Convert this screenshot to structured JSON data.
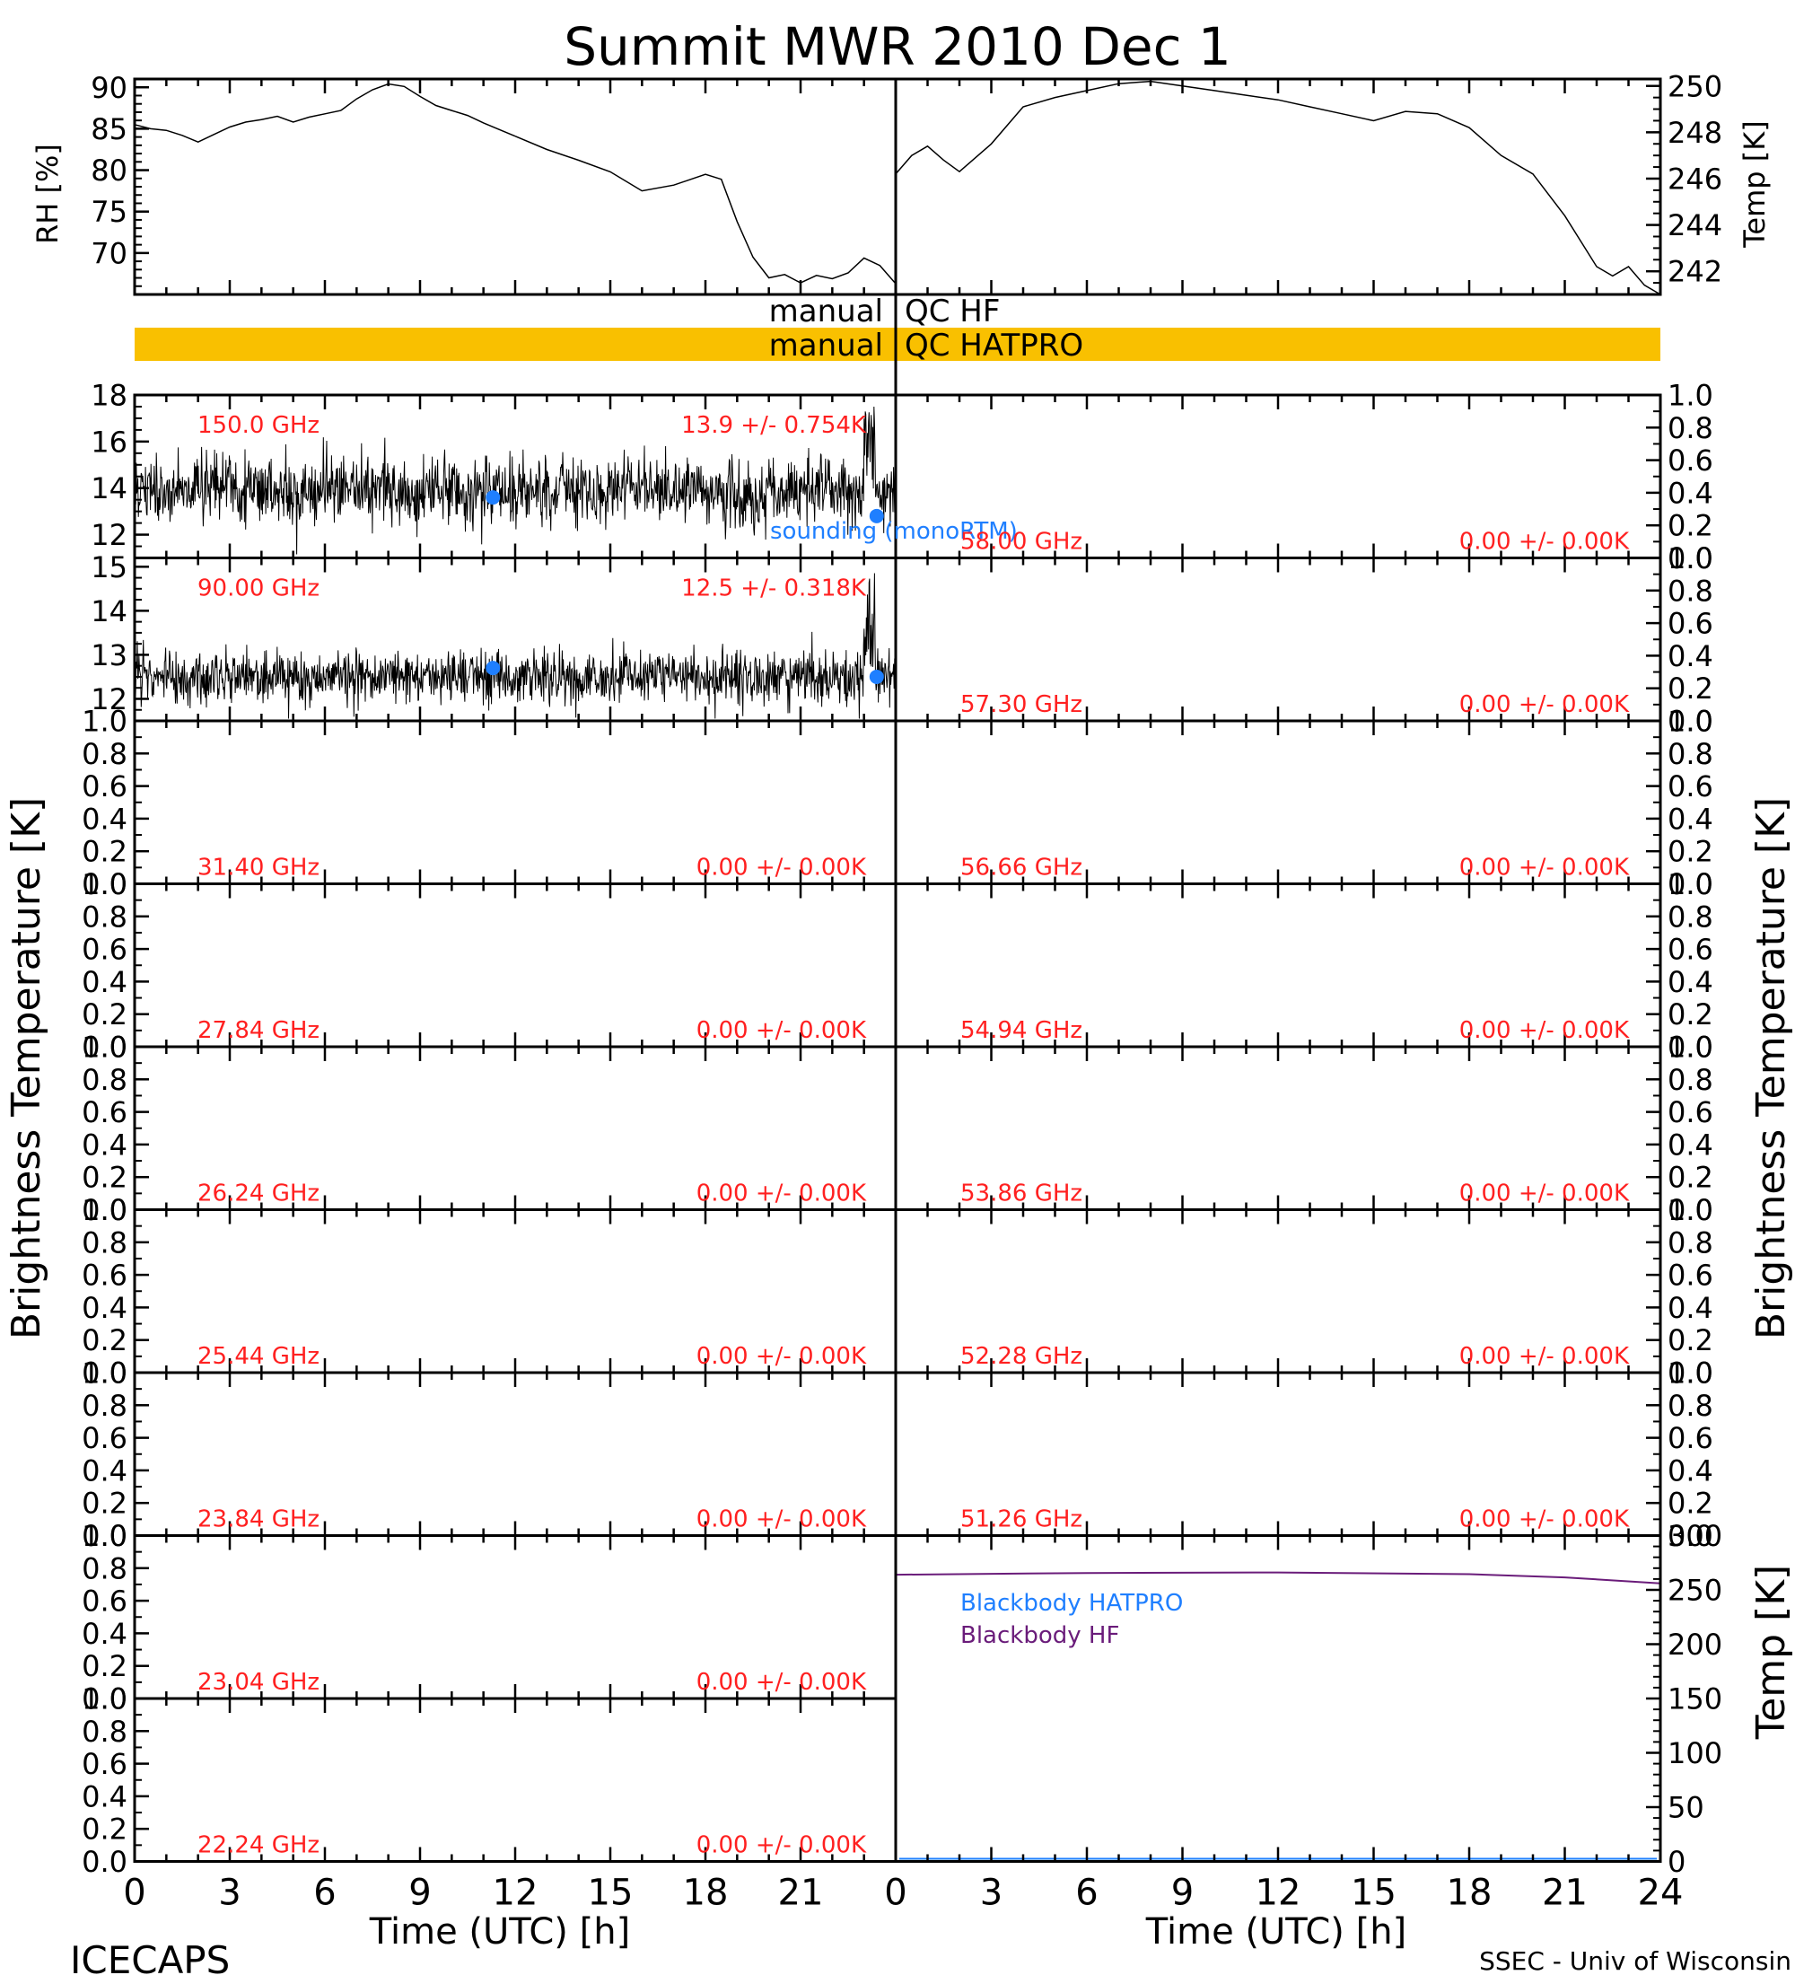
{
  "title": "Summit MWR 2010 Dec  1",
  "footer": {
    "left": "ICECAPS",
    "right": "SSEC - Univ of Wisconsin"
  },
  "ylabels": {
    "left": "Brightness Temperature [K]",
    "right": "Brightness Temperature [K]"
  },
  "qc": {
    "hf_label_left": "manual",
    "hf_label_right": "QC HF",
    "hatpro_label_left": "manual",
    "hatpro_label_right": "QC HATPRO",
    "hatpro_color": "#f9c000"
  },
  "colors": {
    "trace": "#000000",
    "annot": "#ff2020",
    "sounding": "#1f7fff",
    "bb_hatpro": "#1f7fff",
    "bb_hf": "#6a1c7a",
    "qc_bar": "#f9c000"
  },
  "chart_data": [
    {
      "id": "rh",
      "type": "line",
      "ylabel": "RH [%]",
      "xlim": [
        0,
        12
      ],
      "ylim": [
        65,
        91
      ],
      "yticks": [
        70,
        75,
        80,
        85,
        90
      ],
      "x": [
        0,
        0.5,
        1,
        1.5,
        2,
        2.5,
        3,
        3.5,
        4,
        4.5,
        5,
        5.5,
        6,
        6.5,
        7,
        7.5,
        8,
        8.5,
        9,
        9.5,
        10,
        10.5,
        11,
        11.5,
        12
      ],
      "values": [
        85.5,
        85,
        84.8,
        84.2,
        83.4,
        84.3,
        85.2,
        85.8,
        86.1,
        86.5,
        85.8,
        86.4,
        86.8,
        87.2,
        88.6,
        89.7,
        90.4,
        90.1,
        88.9,
        87.8,
        87.2,
        86.6,
        85.7,
        84.9,
        84.1
      ]
    },
    {
      "id": "rh_cont",
      "type": "line",
      "xlim": [
        12,
        24
      ],
      "ylim": [
        65,
        91
      ],
      "x": [
        12,
        13,
        14,
        15,
        16,
        17,
        18,
        18.5,
        19,
        19.5,
        20,
        20.5,
        21,
        21.5,
        22,
        22.5,
        23,
        23.5,
        24
      ],
      "values": [
        84.1,
        82.5,
        81.2,
        79.8,
        77.5,
        78.2,
        79.5,
        78.9,
        73.8,
        69.5,
        67.0,
        67.4,
        66.4,
        67.3,
        66.9,
        67.6,
        69.4,
        68.5,
        66.3
      ]
    },
    {
      "id": "temp",
      "type": "line",
      "ylabel": "Temp [K]",
      "xlim": [
        0,
        24
      ],
      "ylim": [
        241,
        250.3
      ],
      "yticks": [
        242,
        244,
        246,
        248,
        250
      ],
      "x": [
        0,
        0.5,
        1,
        1.5,
        2,
        3,
        4,
        5,
        6,
        7,
        8,
        9,
        10,
        11,
        12,
        13,
        14,
        15,
        16,
        17,
        18,
        19,
        20,
        21,
        22,
        22.5,
        23,
        23.5,
        24
      ],
      "values": [
        246.2,
        247.0,
        247.4,
        246.8,
        246.3,
        247.5,
        249.1,
        249.5,
        249.8,
        250.1,
        250.2,
        250.0,
        249.8,
        249.6,
        249.4,
        249.1,
        248.8,
        248.5,
        248.9,
        248.8,
        248.2,
        247.0,
        246.2,
        244.4,
        242.2,
        241.8,
        242.2,
        241.4,
        241.0
      ]
    },
    {
      "id": "ch150",
      "type": "scatter",
      "freq": "150.0 GHz",
      "stat": "13.9 +/- 0.754K",
      "ylim": [
        11,
        18
      ],
      "yticks": [
        12,
        14,
        16,
        18
      ],
      "mean": 13.9,
      "sd": 0.754,
      "sounding": {
        "x": [
          11.3,
          23.4
        ],
        "values": [
          13.6,
          12.8
        ]
      },
      "sounding_label": "sounding (monoRTM)"
    },
    {
      "id": "ch90",
      "type": "scatter",
      "freq": "90.00 GHz",
      "stat": "12.5 +/- 0.318K",
      "ylim": [
        11.5,
        15.2
      ],
      "yticks": [
        12,
        13,
        14,
        15
      ],
      "mean": 12.5,
      "sd": 0.318,
      "sounding": {
        "x": [
          11.3,
          23.4
        ],
        "values": [
          12.7,
          12.5
        ]
      }
    },
    {
      "id": "left3",
      "freq": "31.40 GHz",
      "stat": "0.00 +/- 0.00K",
      "ylim": [
        0,
        1
      ]
    },
    {
      "id": "left4",
      "freq": "27.84 GHz",
      "stat": "0.00 +/- 0.00K",
      "ylim": [
        0,
        1
      ]
    },
    {
      "id": "left5",
      "freq": "26.24 GHz",
      "stat": "0.00 +/- 0.00K",
      "ylim": [
        0,
        1
      ]
    },
    {
      "id": "left6",
      "freq": "25.44 GHz",
      "stat": "0.00 +/- 0.00K",
      "ylim": [
        0,
        1
      ]
    },
    {
      "id": "left7",
      "freq": "23.84 GHz",
      "stat": "0.00 +/- 0.00K",
      "ylim": [
        0,
        1
      ]
    },
    {
      "id": "left8",
      "freq": "23.04 GHz",
      "stat": "0.00 +/- 0.00K",
      "ylim": [
        0,
        1
      ]
    },
    {
      "id": "left9",
      "freq": "22.24 GHz",
      "stat": "0.00 +/- 0.00K",
      "ylim": [
        0,
        1
      ]
    },
    {
      "id": "right1",
      "freq": "58.00 GHz",
      "stat": "0.00 +/- 0.00K",
      "ylim": [
        0,
        1
      ]
    },
    {
      "id": "right2",
      "freq": "57.30 GHz",
      "stat": "0.00 +/- 0.00K",
      "ylim": [
        0,
        1
      ]
    },
    {
      "id": "right3",
      "freq": "56.66 GHz",
      "stat": "0.00 +/- 0.00K",
      "ylim": [
        0,
        1
      ]
    },
    {
      "id": "right4",
      "freq": "54.94 GHz",
      "stat": "0.00 +/- 0.00K",
      "ylim": [
        0,
        1
      ]
    },
    {
      "id": "right5",
      "freq": "53.86 GHz",
      "stat": "0.00 +/- 0.00K",
      "ylim": [
        0,
        1
      ]
    },
    {
      "id": "right6",
      "freq": "52.28 GHz",
      "stat": "0.00 +/- 0.00K",
      "ylim": [
        0,
        1
      ]
    },
    {
      "id": "right7",
      "freq": "51.26 GHz",
      "stat": "0.00 +/- 0.00K",
      "ylim": [
        0,
        1
      ]
    },
    {
      "id": "blackbody",
      "type": "line",
      "ylabel": "Temp [K]",
      "ylim": [
        0,
        300
      ],
      "yticks": [
        0,
        50,
        100,
        150,
        200,
        250,
        300
      ],
      "legend": [
        "Blackbody HATPRO",
        "Blackbody HF"
      ],
      "x": [
        0,
        6,
        12,
        18,
        21,
        24
      ],
      "values": [
        264,
        265.5,
        266,
        264.5,
        261.5,
        256
      ]
    }
  ],
  "xaxis": {
    "ticks": [
      "0",
      "3",
      "6",
      "9",
      "12",
      "15",
      "18",
      "21"
    ],
    "ticks_right": [
      "0",
      "3",
      "6",
      "9",
      "12",
      "15",
      "18",
      "21",
      "24"
    ],
    "label": "Time (UTC) [h]"
  },
  "small_yticks": [
    "0.0",
    "0.2",
    "0.4",
    "0.6",
    "0.8",
    "1.0"
  ]
}
